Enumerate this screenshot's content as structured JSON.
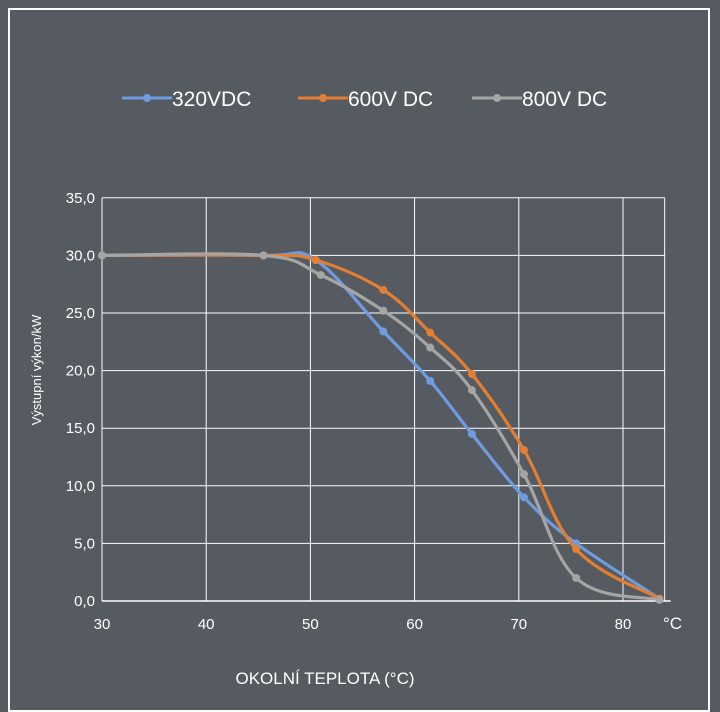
{
  "chart_data": {
    "type": "line",
    "title": "",
    "xlabel": "OKOLNÍ TEPLOTA (°C)",
    "ylabel": "Výstupní výkon/kW",
    "x_unit": "°C",
    "xlim": [
      30,
      84
    ],
    "ylim": [
      0,
      35
    ],
    "x_ticks": [
      "30",
      "40",
      "50",
      "60",
      "70",
      "80"
    ],
    "y_ticks": [
      "0,0",
      "5,0",
      "10,0",
      "15,0",
      "20,0",
      "25,0",
      "30,0",
      "35,0"
    ],
    "grid": true,
    "legend_position": "top",
    "series": [
      {
        "name": "320VDC",
        "color": "#6f9be0",
        "points": [
          [
            30,
            30
          ],
          [
            45.5,
            30
          ],
          [
            50.5,
            29.6
          ],
          [
            57,
            23.4
          ],
          [
            61.5,
            19.1
          ],
          [
            65.5,
            14.5
          ],
          [
            70.5,
            9.0
          ],
          [
            75.5,
            5.0
          ],
          [
            83.5,
            0.2
          ]
        ]
      },
      {
        "name": "600V DC",
        "color": "#e27f32",
        "points": [
          [
            30,
            30
          ],
          [
            45.5,
            30
          ],
          [
            50.5,
            29.6
          ],
          [
            57,
            27.0
          ],
          [
            61.5,
            23.3
          ],
          [
            65.5,
            19.7
          ],
          [
            70.5,
            13.1
          ],
          [
            75.5,
            4.5
          ],
          [
            83.5,
            0.2
          ]
        ]
      },
      {
        "name": "800V DC",
        "color": "#a5a5a5",
        "points": [
          [
            30,
            30
          ],
          [
            45.5,
            30
          ],
          [
            51,
            28.3
          ],
          [
            57,
            25.2
          ],
          [
            61.5,
            22.0
          ],
          [
            65.5,
            18.3
          ],
          [
            70.5,
            11.0
          ],
          [
            75.5,
            2.0
          ],
          [
            83.5,
            0.1
          ]
        ]
      }
    ]
  }
}
